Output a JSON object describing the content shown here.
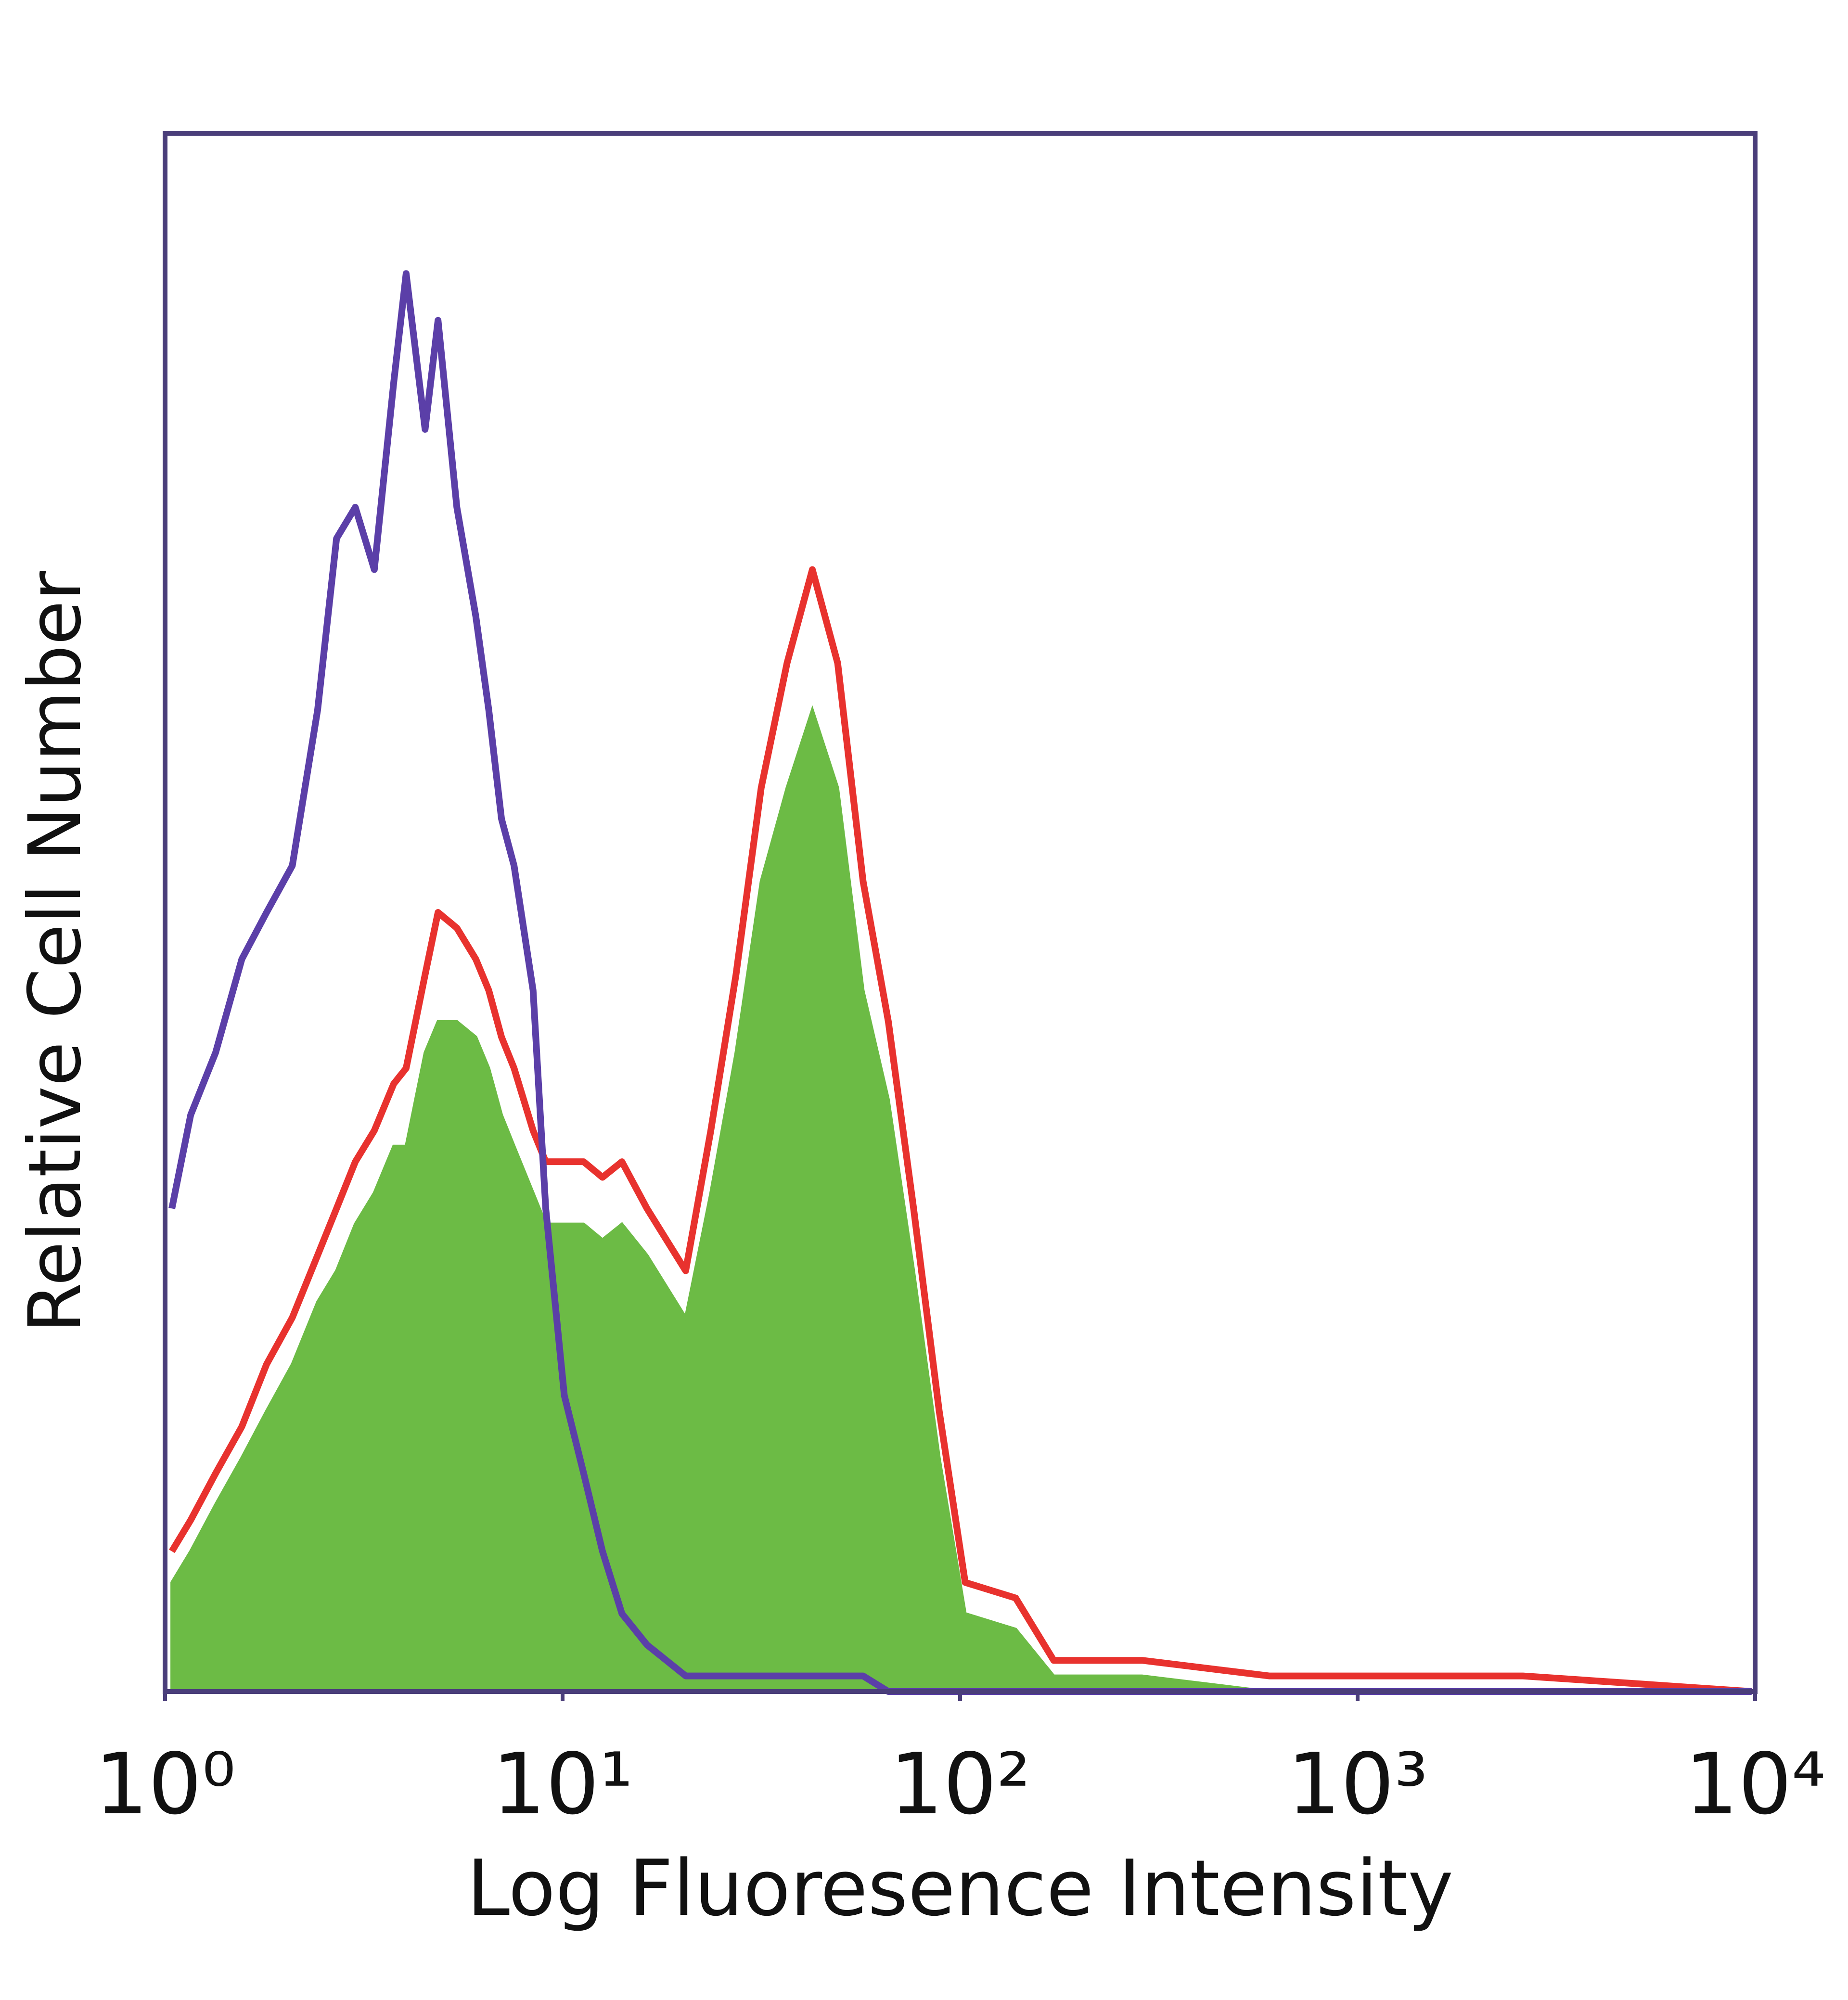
{
  "chart_data": {
    "type": "histogram",
    "xlabel": "Log Fluoresence Intensity",
    "ylabel": "Relative Cell Number",
    "xscale": "log",
    "xlim": [
      1,
      10000
    ],
    "xticks": [
      {
        "value": 1,
        "label": "10⁰"
      },
      {
        "value": 10,
        "label": "10¹"
      },
      {
        "value": 100,
        "label": "10²"
      },
      {
        "value": 1000,
        "label": "10³"
      },
      {
        "value": 10000,
        "label": "10⁴"
      }
    ],
    "ylim": [
      0,
      100
    ],
    "x": [
      1.04,
      1.16,
      1.34,
      1.56,
      1.8,
      2.09,
      2.42,
      2.7,
      3.01,
      3.36,
      3.76,
      4.04,
      4.51,
      4.86,
      5.42,
      6.05,
      6.52,
      7.02,
      7.55,
      8.43,
      9.07,
      10.1,
      11.3,
      12.6,
      14.1,
      16.3,
      20.4,
      23.6,
      27.3,
      31.6,
      36.7,
      42.5,
      49.2,
      57,
      66,
      76.4,
      88.6,
      103,
      138,
      172,
      287,
      599,
      2606,
      9800
    ],
    "series": [
      {
        "color": "#6cbb45",
        "fill": true,
        "values": [
          7,
          9,
          12,
          15,
          18,
          21,
          25,
          27,
          30,
          32,
          35,
          35,
          41,
          43,
          43,
          42,
          40,
          37,
          35,
          32,
          30,
          30,
          30,
          29,
          30,
          28,
          24,
          32,
          41,
          52,
          58,
          63,
          58,
          45,
          38,
          27,
          15,
          5,
          4,
          1,
          1,
          0,
          0,
          0
        ]
      },
      {
        "color": "#e8322e",
        "fill": false,
        "values": [
          9,
          11,
          14,
          17,
          21,
          24,
          28,
          31,
          34,
          36,
          39,
          40,
          46,
          50,
          49,
          47,
          45,
          42,
          40,
          36,
          34,
          34,
          34,
          33,
          34,
          31,
          27,
          36,
          46,
          58,
          66,
          72,
          66,
          52,
          43,
          31,
          18,
          7,
          6,
          2,
          2,
          1,
          1,
          0
        ]
      },
      {
        "color": "#5b3fa8",
        "fill": false,
        "values": [
          31,
          37,
          41,
          47,
          50,
          53,
          63,
          74,
          76,
          72,
          84,
          91,
          81,
          88,
          76,
          69,
          63,
          56,
          53,
          45,
          31,
          19,
          14,
          9,
          5,
          3,
          1,
          1,
          1,
          1,
          1,
          1,
          1,
          1,
          0,
          0,
          0,
          0,
          0,
          0,
          0,
          0,
          0,
          0
        ]
      }
    ]
  }
}
